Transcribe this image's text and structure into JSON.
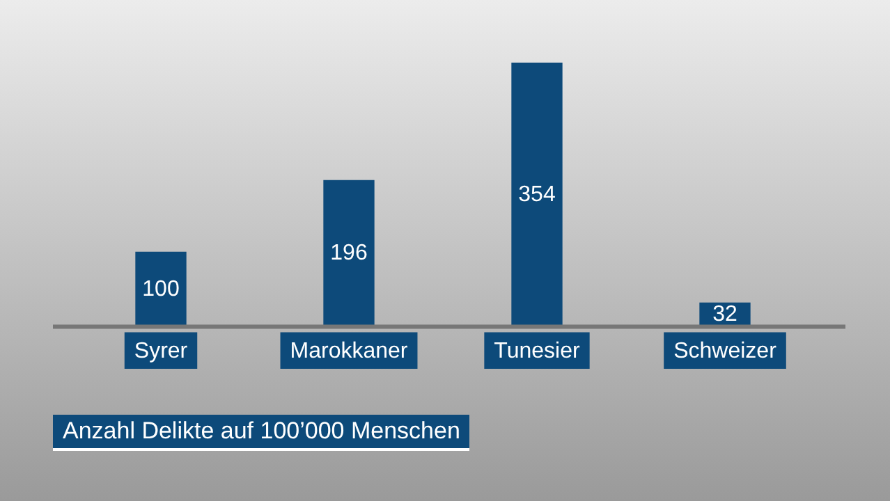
{
  "chart_data": {
    "type": "bar",
    "title": "Anzahl Delikte auf 100’000 Menschen",
    "categories": [
      "Syrer",
      "Marokkaner",
      "Tunesier",
      "Schweizer"
    ],
    "values": [
      100,
      196,
      354,
      32
    ],
    "color": "#0d4a7a",
    "data_labels": true,
    "grid": false,
    "legend": false
  }
}
